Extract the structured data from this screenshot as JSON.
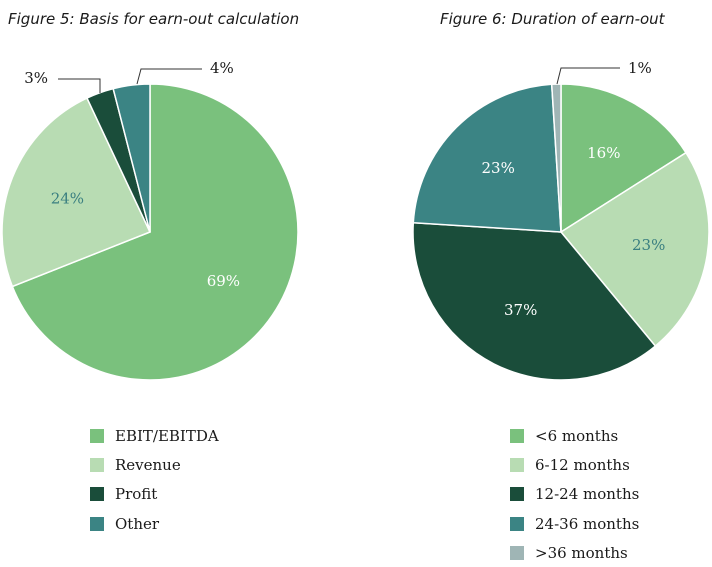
{
  "chart_data": [
    {
      "type": "pie",
      "title": "Figure 5: Basis for earn-out calculation",
      "slices": [
        {
          "label": "EBIT/EBITDA",
          "value": 69,
          "display": "69%",
          "color": "#7ac17d",
          "label_color": "#ffffff"
        },
        {
          "label": "Revenue",
          "value": 24,
          "display": "24%",
          "color": "#b8dcb3",
          "label_color": "#3a7f80"
        },
        {
          "label": "Profit",
          "value": 3,
          "display": "3%",
          "color": "#1a4d3a",
          "label_color": "#1a1a1a"
        },
        {
          "label": "Other",
          "value": 4,
          "display": "4%",
          "color": "#3b8484",
          "label_color": "#1a1a1a"
        }
      ]
    },
    {
      "type": "pie",
      "title": "Figure 6: Duration of earn-out",
      "slices": [
        {
          "label": "<6 months",
          "value": 16,
          "display": "16%",
          "color": "#7ac17d",
          "label_color": "#ffffff"
        },
        {
          "label": "6-12 months",
          "value": 23,
          "display": "23%",
          "color": "#b8dcb3",
          "label_color": "#3a7f80"
        },
        {
          "label": "12-24 months",
          "value": 37,
          "display": "37%",
          "color": "#1a4d3a",
          "label_color": "#ffffff"
        },
        {
          "label": "24-36 months",
          "value": 23,
          "display": "23%",
          "color": "#3b8484",
          "label_color": "#ffffff"
        },
        {
          "label": ">36 months",
          "value": 1,
          "display": "1%",
          "color": "#9fb5b5",
          "label_color": "#1a1a1a"
        }
      ]
    }
  ]
}
